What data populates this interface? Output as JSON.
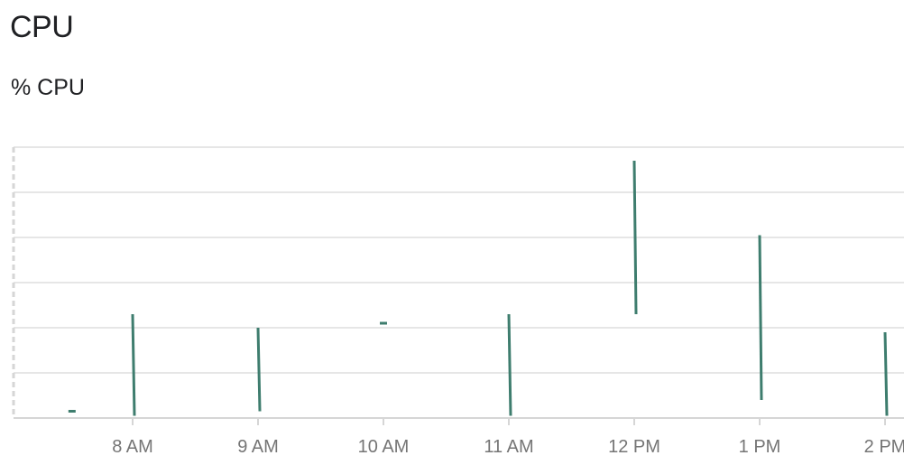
{
  "title": "CPU",
  "chart_data": {
    "type": "line",
    "title": "CPU",
    "ylabel": "% CPU",
    "xlabel": "",
    "x_ticks": [
      "8 AM",
      "9 AM",
      "10 AM",
      "11 AM",
      "12 PM",
      "1 PM",
      "2 PM"
    ],
    "ylim": [
      0,
      6
    ],
    "grid": true,
    "legend": "none",
    "colors": {
      "series": "#3e7d6e",
      "grid": "#e6e6e6",
      "axis": "#d6d6d6",
      "tick_label": "#757575"
    },
    "series": [
      {
        "values": [
          {
            "x": "7:31 AM",
            "min": 0.15,
            "max": 0.15
          },
          {
            "x": "8:00 AM",
            "min": 0.05,
            "max": 2.3
          },
          {
            "x": "9:00 AM",
            "min": 0.15,
            "max": 2.0
          },
          {
            "x": "10:00 AM",
            "min": 2.1,
            "max": 2.1
          },
          {
            "x": "11:00 AM",
            "min": 0.05,
            "max": 2.3
          },
          {
            "x": "12:00 PM",
            "min": 2.3,
            "max": 5.7
          },
          {
            "x": "1:00 PM",
            "min": 0.4,
            "max": 4.05
          },
          {
            "x": "2:00 PM",
            "min": 0.05,
            "max": 1.9
          }
        ]
      }
    ]
  }
}
